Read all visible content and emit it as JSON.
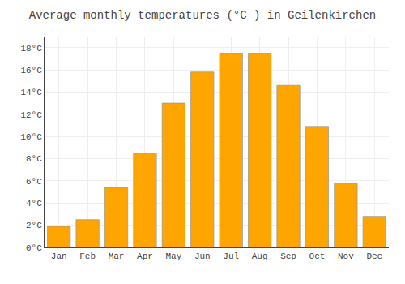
{
  "chart_data": {
    "type": "bar",
    "title": "Average monthly temperatures (°C ) in Geilenkirchen",
    "categories": [
      "Jan",
      "Feb",
      "Mar",
      "Apr",
      "May",
      "Jun",
      "Jul",
      "Aug",
      "Sep",
      "Oct",
      "Nov",
      "Dec"
    ],
    "values": [
      1.9,
      2.5,
      5.4,
      8.5,
      13.0,
      15.8,
      17.5,
      17.5,
      14.6,
      10.9,
      5.8,
      2.8
    ],
    "color": "#FFA500",
    "ylim": [
      0,
      19
    ],
    "yticks": [
      {
        "value": 0,
        "label": "0°C"
      },
      {
        "value": 2,
        "label": "2°C"
      },
      {
        "value": 4,
        "label": "4°C"
      },
      {
        "value": 6,
        "label": "6°C"
      },
      {
        "value": 8,
        "label": "8°C"
      },
      {
        "value": 10,
        "label": "10°C"
      },
      {
        "value": 12,
        "label": "12°C"
      },
      {
        "value": 14,
        "label": "14°C"
      },
      {
        "value": 16,
        "label": "16°C"
      },
      {
        "value": 18,
        "label": "18°C"
      }
    ],
    "grid": true
  }
}
